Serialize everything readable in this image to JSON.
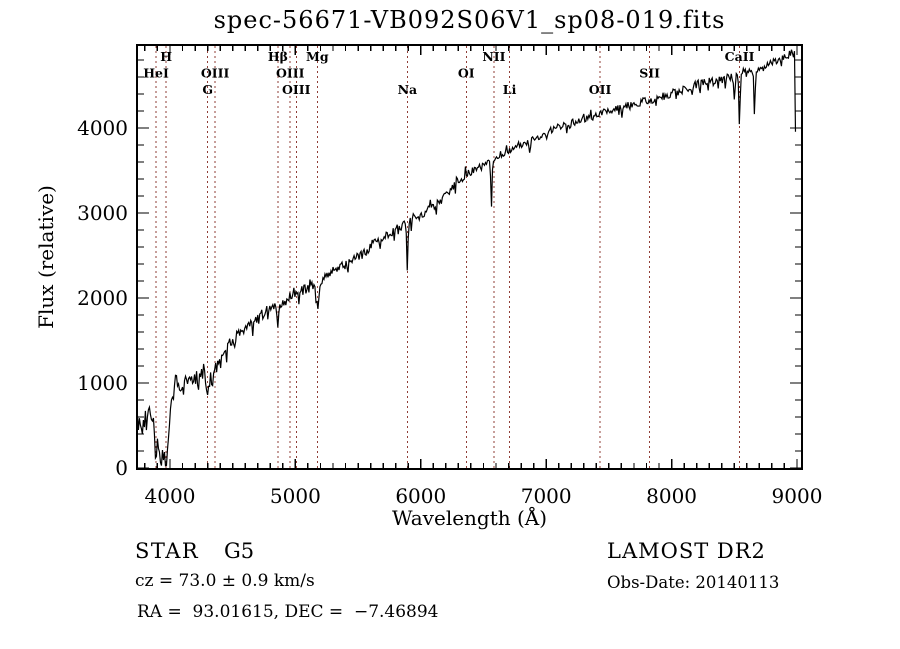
{
  "title": "spec-56671-VB092S06V1_sp08-019.fits",
  "footer": {
    "class_label": "STAR",
    "subclass": "G5",
    "cz_line": "cz = 73.0 ± 0.9 km/s",
    "radec_line": "RA =  93.01615, DEC =  −7.46894",
    "survey": "LAMOST DR2",
    "obs_date": "Obs-Date: 20140113"
  },
  "chart_data": {
    "type": "line",
    "title": "spec-56671-VB092S06V1_sp08-019.fits",
    "xlabel": "Wavelength (Å)",
    "ylabel": "Flux (relative)",
    "xlim": [
      3737,
      9040
    ],
    "ylim": [
      0,
      4976
    ],
    "xticks": [
      4000,
      5000,
      6000,
      7000,
      8000,
      9000
    ],
    "yticks": [
      0,
      1000,
      2000,
      3000,
      4000
    ],
    "x_minor_step": 100,
    "y_minor_step": 200,
    "grid": false,
    "legend": "none",
    "line_color": "#000000",
    "marker_line_color": "#8f3d36",
    "line_markers": [
      {
        "label": "HeI",
        "wavelength": 3889,
        "row": 2
      },
      {
        "label": "H",
        "wavelength": 3970,
        "row": 1
      },
      {
        "label": "G",
        "wavelength": 4301,
        "row": 3
      },
      {
        "label": "OIII",
        "wavelength": 4360,
        "row": 2
      },
      {
        "label": "Hβ",
        "wavelength": 4861,
        "row": 1
      },
      {
        "label": "OIII",
        "wavelength": 4959,
        "row": 2
      },
      {
        "label": "OIII",
        "wavelength": 5007,
        "row": 3
      },
      {
        "label": "Mg",
        "wavelength": 5175,
        "row": 1
      },
      {
        "label": "Na",
        "wavelength": 5893,
        "row": 3
      },
      {
        "label": "OI",
        "wavelength": 6363,
        "row": 2
      },
      {
        "label": "NII",
        "wavelength": 6583,
        "row": 1
      },
      {
        "label": "Li",
        "wavelength": 6708,
        "row": 3
      },
      {
        "label": "OII",
        "wavelength": 7430,
        "row": 3
      },
      {
        "label": "SII",
        "wavelength": 7825,
        "row": 2
      },
      {
        "label": "CaII",
        "wavelength": 8542,
        "row": 1
      }
    ],
    "spectrum": {
      "continuum_points": [
        [
          3737,
          680
        ],
        [
          3760,
          520
        ],
        [
          3790,
          560
        ],
        [
          3820,
          600
        ],
        [
          3850,
          620
        ],
        [
          3880,
          430
        ],
        [
          3910,
          300
        ],
        [
          3935,
          170
        ],
        [
          3955,
          210
        ],
        [
          3970,
          130
        ],
        [
          3985,
          360
        ],
        [
          4000,
          620
        ],
        [
          4020,
          850
        ],
        [
          4045,
          950
        ],
        [
          4100,
          1000
        ],
        [
          4150,
          1030
        ],
        [
          4200,
          1070
        ],
        [
          4260,
          1120
        ],
        [
          4310,
          1020
        ],
        [
          4360,
          1200
        ],
        [
          4400,
          1330
        ],
        [
          4500,
          1500
        ],
        [
          4600,
          1640
        ],
        [
          4700,
          1770
        ],
        [
          4800,
          1880
        ],
        [
          4861,
          1900
        ],
        [
          4930,
          1980
        ],
        [
          5000,
          2050
        ],
        [
          5100,
          2120
        ],
        [
          5175,
          2160
        ],
        [
          5270,
          2280
        ],
        [
          5400,
          2400
        ],
        [
          5500,
          2480
        ],
        [
          5600,
          2600
        ],
        [
          5700,
          2720
        ],
        [
          5800,
          2810
        ],
        [
          5900,
          2900
        ],
        [
          6000,
          2980
        ],
        [
          6100,
          3070
        ],
        [
          6200,
          3200
        ],
        [
          6300,
          3380
        ],
        [
          6400,
          3480
        ],
        [
          6500,
          3550
        ],
        [
          6563,
          3600
        ],
        [
          6650,
          3700
        ],
        [
          6750,
          3780
        ],
        [
          6850,
          3830
        ],
        [
          6950,
          3900
        ],
        [
          7050,
          3980
        ],
        [
          7150,
          4040
        ],
        [
          7250,
          4080
        ],
        [
          7350,
          4120
        ],
        [
          7450,
          4180
        ],
        [
          7550,
          4230
        ],
        [
          7650,
          4270
        ],
        [
          7750,
          4300
        ],
        [
          7850,
          4340
        ],
        [
          7950,
          4380
        ],
        [
          8050,
          4430
        ],
        [
          8150,
          4480
        ],
        [
          8250,
          4530
        ],
        [
          8350,
          4570
        ],
        [
          8450,
          4600
        ],
        [
          8550,
          4650
        ],
        [
          8650,
          4680
        ],
        [
          8750,
          4720
        ],
        [
          8850,
          4800
        ],
        [
          8950,
          4870
        ],
        [
          8985,
          4920
        ]
      ],
      "absorption_features": [
        [
          3889,
          260,
          8
        ],
        [
          3933,
          170,
          6
        ],
        [
          3970,
          90,
          6
        ],
        [
          4102,
          200,
          6
        ],
        [
          4227,
          120,
          5
        ],
        [
          4300,
          180,
          9
        ],
        [
          4340,
          180,
          6
        ],
        [
          4861,
          280,
          6
        ],
        [
          5175,
          320,
          9
        ],
        [
          5893,
          540,
          5
        ],
        [
          6563,
          520,
          5
        ],
        [
          6867,
          160,
          6
        ],
        [
          7190,
          90,
          5
        ],
        [
          7605,
          90,
          6
        ],
        [
          8370,
          150,
          3
        ],
        [
          8498,
          280,
          4
        ],
        [
          8542,
          680,
          4.5
        ],
        [
          8662,
          600,
          4.5
        ]
      ],
      "noise_profile": [
        [
          3737,
          160
        ],
        [
          3950,
          120
        ],
        [
          4000,
          85
        ],
        [
          4150,
          72
        ],
        [
          4400,
          66
        ],
        [
          4900,
          60
        ],
        [
          5400,
          56
        ],
        [
          5900,
          50
        ],
        [
          6400,
          46
        ],
        [
          6900,
          40
        ],
        [
          7500,
          42
        ],
        [
          8300,
          52
        ],
        [
          8700,
          48
        ],
        [
          9040,
          42
        ]
      ],
      "edge_drop": [
        [
          8988,
          3955
        ]
      ],
      "sample_step": 8,
      "seed": 20140113
    }
  }
}
